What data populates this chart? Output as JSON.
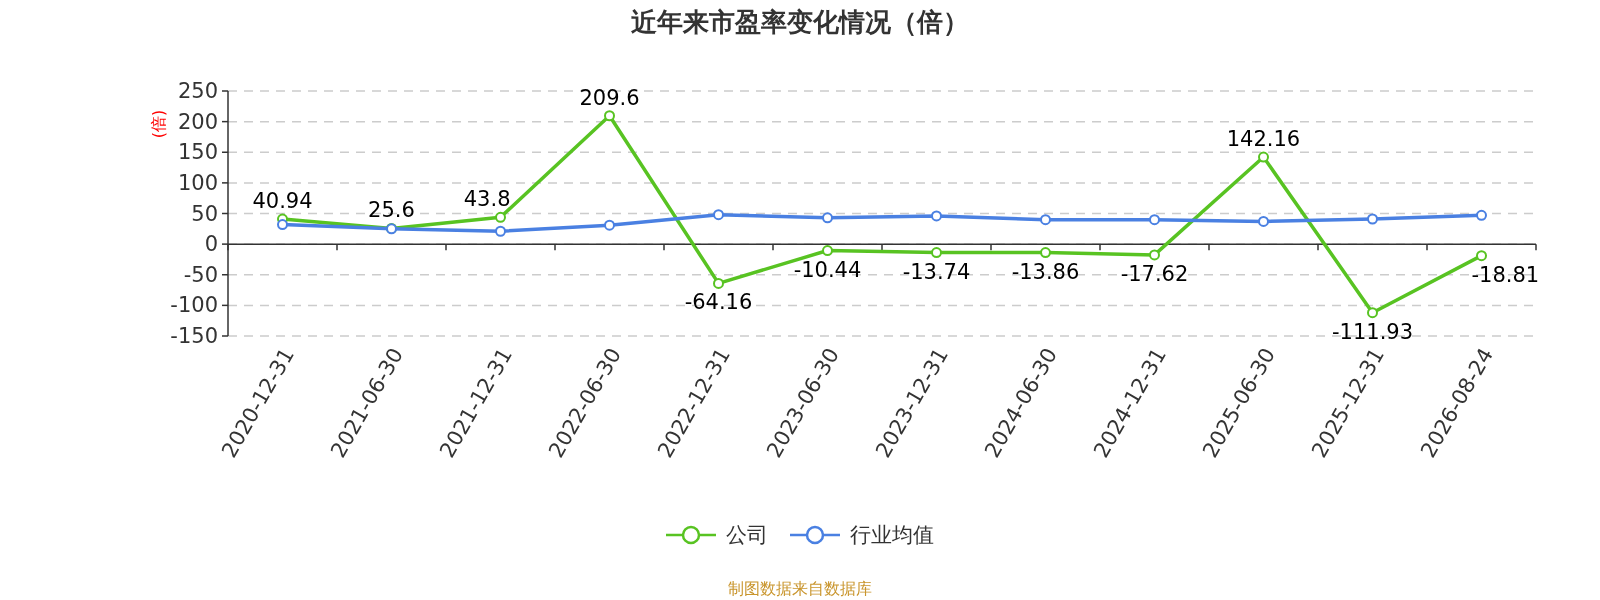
{
  "chart_data": {
    "type": "line",
    "title": "近年来市盈率变化情况（倍）",
    "ylabel": "(倍)",
    "categories": [
      "2020-12-31",
      "2021-06-30",
      "2021-12-31",
      "2022-06-30",
      "2022-12-31",
      "2023-06-30",
      "2023-12-31",
      "2024-06-30",
      "2024-12-31",
      "2025-06-30",
      "2025-12-31",
      "2026-08-24"
    ],
    "series": [
      {
        "name": "公司",
        "color": "#58c322",
        "values": [
          40.94,
          25.6,
          43.8,
          209.6,
          -64.16,
          -10.44,
          -13.74,
          -13.86,
          -17.62,
          142.16,
          -111.93,
          -18.81
        ],
        "value_labels": [
          "40.94",
          "25.6",
          "43.8",
          "209.6",
          "-64.16",
          "-10.44",
          "-13.74",
          "-13.86",
          "-17.62",
          "142.16",
          "-111.93",
          "-18.81"
        ]
      },
      {
        "name": "行业均值",
        "color": "#4a80e2",
        "values": [
          32,
          25,
          21,
          31,
          48,
          43,
          46,
          40,
          40,
          37,
          41,
          47
        ]
      }
    ],
    "ylim": [
      -150,
      250
    ],
    "yticks": [
      -150,
      -100,
      -50,
      0,
      50,
      100,
      150,
      200,
      250
    ],
    "grid": "y",
    "legend": "bottom",
    "marker": "circle",
    "line_style": "solid",
    "annotations": [
      "制图数据来自数据库"
    ]
  }
}
